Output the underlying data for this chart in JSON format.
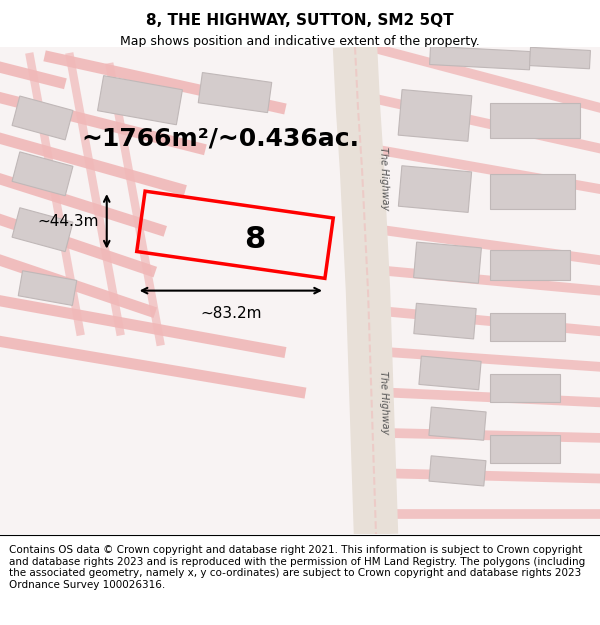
{
  "title": "8, THE HIGHWAY, SUTTON, SM2 5QT",
  "subtitle": "Map shows position and indicative extent of the property.",
  "area_text": "~1766m²/~0.436ac.",
  "label_number": "8",
  "dim_width": "~83.2m",
  "dim_height": "~44.3m",
  "footer": "Contains OS data © Crown copyright and database right 2021. This information is subject to Crown copyright and database rights 2023 and is reproduced with the permission of HM Land Registry. The polygons (including the associated geometry, namely x, y co-ordinates) are subject to Crown copyright and database rights 2023 Ordnance Survey 100026316.",
  "bg_color": "#f5f0f0",
  "map_bg": "#ffffff",
  "road_color": "#f5b8b8",
  "road_center_color": "#e8a0a0",
  "building_color": "#d8d0d0",
  "plot_color": "#ff0000",
  "plot_fill": "none",
  "street_label": "The Highway",
  "title_fontsize": 11,
  "subtitle_fontsize": 9,
  "area_fontsize": 18,
  "label_fontsize": 22,
  "dim_fontsize": 11,
  "footer_fontsize": 7.5
}
